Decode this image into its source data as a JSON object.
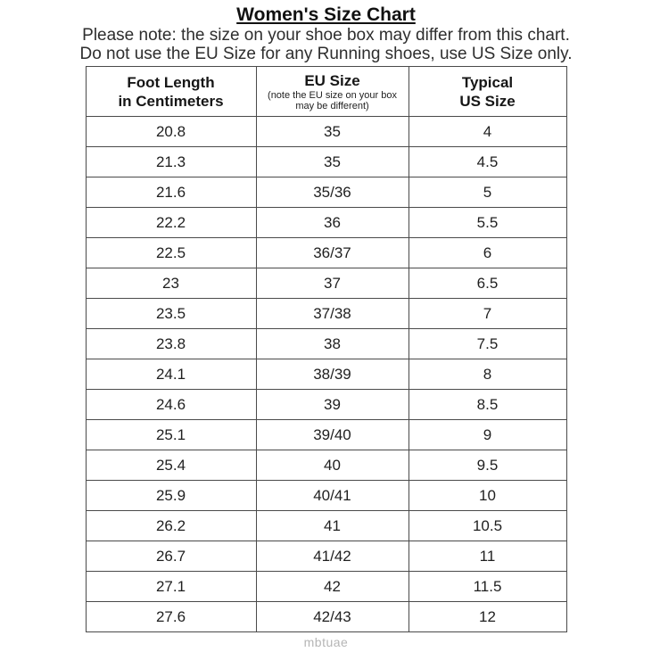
{
  "header": {
    "title": "Women's Size Chart",
    "note_line1": "Please note: the size on your shoe box may differ from this chart.",
    "note_line2": "Do not use the EU Size for any Running shoes, use US Size only."
  },
  "table": {
    "headers": {
      "foot_length": {
        "line1": "Foot Length",
        "line2": "in Centimeters"
      },
      "eu_size": {
        "title": "EU Size",
        "sub1": "(note the EU size on your box",
        "sub2": "may be different)"
      },
      "us_size": {
        "line1": "Typical",
        "line2": "US Size"
      }
    },
    "rows": [
      [
        "20.8",
        "35",
        "4"
      ],
      [
        "21.3",
        "35",
        "4.5"
      ],
      [
        "21.6",
        "35/36",
        "5"
      ],
      [
        "22.2",
        "36",
        "5.5"
      ],
      [
        "22.5",
        "36/37",
        "6"
      ],
      [
        "23",
        "37",
        "6.5"
      ],
      [
        "23.5",
        "37/38",
        "7"
      ],
      [
        "23.8",
        "38",
        "7.5"
      ],
      [
        "24.1",
        "38/39",
        "8"
      ],
      [
        "24.6",
        "39",
        "8.5"
      ],
      [
        "25.1",
        "39/40",
        "9"
      ],
      [
        "25.4",
        "40",
        "9.5"
      ],
      [
        "25.9",
        "40/41",
        "10"
      ],
      [
        "26.2",
        "41",
        "10.5"
      ],
      [
        "26.7",
        "41/42",
        "11"
      ],
      [
        "27.1",
        "42",
        "11.5"
      ],
      [
        "27.6",
        "42/43",
        "12"
      ]
    ]
  },
  "footer": {
    "watermark": "mbtuae"
  },
  "colors": {
    "background": "#ffffff",
    "text": "#1c1c1c",
    "border": "#4a4a4a",
    "watermark": "#b5b5b5"
  }
}
